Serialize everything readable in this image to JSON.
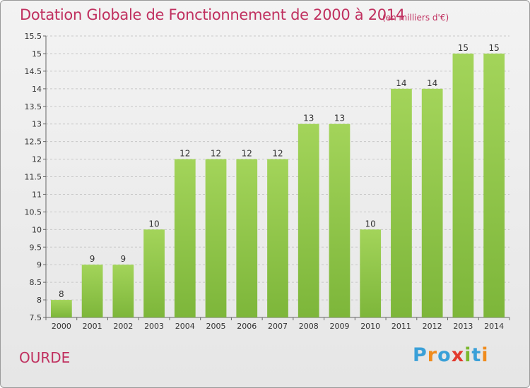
{
  "title": "Dotation Globale de Fonctionnement de 2000 à 2014",
  "subtitle": "(en milliers d'€)",
  "commune": "OURDE",
  "logo": {
    "letters": [
      "P",
      "r",
      "o",
      "x",
      "i",
      "t",
      "i"
    ],
    "colors": [
      "#3aa0d8",
      "#f08c1e",
      "#3aa0d8",
      "#e23a2e",
      "#7cb82f",
      "#3aa0d8",
      "#f08c1e"
    ]
  },
  "chart_data": {
    "type": "bar",
    "categories": [
      "2000",
      "2001",
      "2002",
      "2003",
      "2004",
      "2005",
      "2006",
      "2007",
      "2008",
      "2009",
      "2010",
      "2011",
      "2012",
      "2013",
      "2014"
    ],
    "values": [
      8,
      9,
      9,
      10,
      12,
      12,
      12,
      12,
      13,
      13,
      10,
      14,
      14,
      15,
      15
    ],
    "data_labels": [
      "8",
      "9",
      "9",
      "10",
      "12",
      "12",
      "12",
      "12",
      "13",
      "13",
      "10",
      "14",
      "14",
      "15",
      "15"
    ],
    "ylim": [
      7.5,
      15.5
    ],
    "yticks": [
      7.5,
      8,
      8.5,
      9,
      9.5,
      10,
      10.5,
      11,
      11.5,
      12,
      12.5,
      13,
      13.5,
      14,
      14.5,
      15,
      15.5
    ],
    "ytick_labels": [
      "7.5",
      "8",
      "8.5",
      "9",
      "9.5",
      "10",
      "10.5",
      "11",
      "11.5",
      "12",
      "12.5",
      "13",
      "13.5",
      "14",
      "14.5",
      "15",
      "15.5"
    ],
    "grid": "horizontal-dashed",
    "bar_color": "#7db63a",
    "bar_color_light": "#a3d45a"
  }
}
